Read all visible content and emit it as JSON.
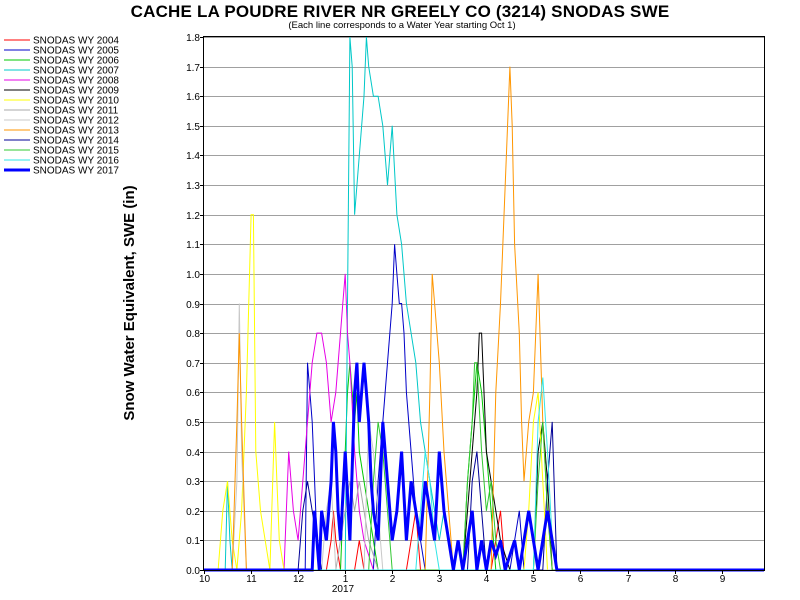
{
  "chart_data": {
    "type": "line",
    "title": "CACHE LA POUDRE RIVER NR GREELY CO (3214) SNODAS SWE",
    "subtitle": "(Each line corresponds to a Water Year starting Oct 1)",
    "ylabel": "Snow Water Equivalent, SWE (in)",
    "xlabel": "",
    "x_tick_labels": [
      "10",
      "11",
      "12",
      "1",
      "2",
      "3",
      "4",
      "5",
      "6",
      "7",
      "8",
      "9"
    ],
    "x_tick_months": [
      10,
      11,
      12,
      13,
      14,
      15,
      16,
      17,
      18,
      19,
      20,
      21
    ],
    "x_year_label": "2017",
    "xlim": [
      10,
      21.9
    ],
    "ylim": [
      0,
      1.8
    ],
    "y_ticks": [
      0.0,
      0.1,
      0.2,
      0.3,
      0.4,
      0.5,
      0.6,
      0.7,
      0.8,
      0.9,
      1.0,
      1.1,
      1.2,
      1.3,
      1.4,
      1.5,
      1.6,
      1.7,
      1.8
    ],
    "y_tick_labels": [
      "0.0",
      "0.1",
      "0.2",
      "0.3",
      "0.4",
      "0.5",
      "0.6",
      "0.7",
      "0.8",
      "0.9",
      "1.0",
      "1.1",
      "1.2",
      "1.3",
      "1.4",
      "1.5",
      "1.6",
      "1.7",
      "1.8"
    ],
    "grid": "horizontal",
    "legend_position": "left",
    "series": [
      {
        "name": "SNODAS WY 2004",
        "color": "#ff0000",
        "bold": false,
        "x": [
          10.0,
          12.6,
          12.7,
          12.75,
          12.8,
          12.9,
          13.2,
          13.3,
          13.4,
          14.3,
          14.4,
          14.5,
          14.6,
          16.1,
          16.2,
          16.3,
          16.4,
          21.9
        ],
        "y": [
          0,
          0,
          0.1,
          0.2,
          0.1,
          0,
          0,
          0.1,
          0,
          0,
          0.1,
          0.2,
          0,
          0,
          0.1,
          0.2,
          0,
          0
        ]
      },
      {
        "name": "SNODAS WY 2005",
        "color": "#0000c8",
        "bold": false,
        "x": [
          10.0,
          12.15,
          12.2,
          12.25,
          12.3,
          12.35,
          12.4,
          12.45,
          13.6,
          13.7,
          13.8,
          13.9,
          14.0,
          14.05,
          14.1,
          14.15,
          14.2,
          14.25,
          14.3,
          14.4,
          14.5,
          14.6,
          14.7,
          16.5,
          16.6,
          16.7,
          16.8,
          21.9
        ],
        "y": [
          0,
          0,
          0.7,
          0.6,
          0.5,
          0.3,
          0.1,
          0,
          0,
          0.3,
          0.5,
          0.7,
          0.9,
          1.1,
          1.0,
          0.9,
          0.9,
          0.8,
          0.6,
          0.4,
          0.2,
          0.1,
          0,
          0,
          0.1,
          0.2,
          0,
          0
        ]
      },
      {
        "name": "SNODAS WY 2006",
        "color": "#00c800",
        "bold": false,
        "x": [
          10.0,
          12.9,
          13.0,
          13.05,
          13.1,
          13.15,
          13.2,
          13.25,
          13.3,
          13.4,
          13.5,
          13.6,
          13.7,
          15.5,
          15.6,
          15.7,
          15.8,
          15.9,
          16.0,
          16.1,
          16.2,
          21.9
        ],
        "y": [
          0,
          0,
          0.4,
          0.6,
          0.7,
          0.6,
          0.5,
          0.6,
          0.4,
          0.3,
          0.2,
          0.1,
          0,
          0,
          0.3,
          0.5,
          0.7,
          0.6,
          0.4,
          0.2,
          0,
          0
        ]
      },
      {
        "name": "SNODAS WY 2007",
        "color": "#00c8c8",
        "bold": false,
        "x": [
          10.0,
          10.45,
          10.5,
          10.55,
          10.6,
          13.0,
          13.05,
          13.1,
          13.15,
          13.2,
          13.3,
          13.4,
          13.45,
          13.5,
          13.6,
          13.7,
          13.8,
          13.9,
          14.0,
          14.1,
          14.2,
          14.3,
          14.4,
          14.5,
          14.6,
          14.7,
          14.8,
          14.9,
          15.0,
          15.1,
          15.2,
          15.3,
          21.9
        ],
        "y": [
          0,
          0,
          0.3,
          0.1,
          0,
          0,
          0.9,
          1.8,
          1.7,
          1.2,
          1.4,
          1.6,
          1.8,
          1.7,
          1.6,
          1.6,
          1.5,
          1.3,
          1.5,
          1.2,
          1.1,
          0.9,
          0.8,
          0.7,
          0.5,
          0.4,
          0.3,
          0.2,
          0.1,
          0.2,
          0.1,
          0,
          0
        ]
      },
      {
        "name": "SNODAS WY 2008",
        "color": "#e600e6",
        "bold": false,
        "x": [
          10.0,
          11.7,
          11.8,
          11.9,
          12.0,
          12.1,
          12.2,
          12.3,
          12.4,
          12.5,
          12.6,
          12.7,
          12.8,
          12.9,
          12.95,
          13.0,
          13.05,
          13.1,
          13.2,
          13.3,
          13.4,
          13.5,
          13.6,
          21.9
        ],
        "y": [
          0,
          0,
          0.4,
          0.2,
          0.1,
          0.3,
          0.5,
          0.7,
          0.8,
          0.8,
          0.7,
          0.5,
          0.6,
          0.8,
          0.9,
          1.0,
          0.8,
          0.7,
          0.4,
          0.2,
          0.1,
          0.05,
          0,
          0
        ]
      },
      {
        "name": "SNODAS WY 2009",
        "color": "#000000",
        "bold": false,
        "x": [
          10.0,
          15.5,
          15.6,
          15.7,
          15.8,
          15.85,
          15.9,
          15.95,
          16.0,
          16.1,
          16.2,
          16.3,
          16.4,
          16.5,
          17.0,
          17.1,
          17.2,
          17.3,
          17.4,
          21.9
        ],
        "y": [
          0,
          0,
          0.2,
          0.4,
          0.6,
          0.8,
          0.8,
          0.6,
          0.4,
          0.3,
          0.2,
          0.1,
          0.05,
          0,
          0,
          0.4,
          0.5,
          0.3,
          0,
          0
        ]
      },
      {
        "name": "SNODAS WY 2010",
        "color": "#ffff00",
        "bold": false,
        "x": [
          10.0,
          10.3,
          10.4,
          10.5,
          10.6,
          10.7,
          10.8,
          10.9,
          11.0,
          11.05,
          11.1,
          11.2,
          11.3,
          11.4,
          11.5,
          11.55,
          11.6,
          11.7,
          11.8,
          16.8,
          16.9,
          17.0,
          17.1,
          17.2,
          17.3,
          21.9
        ],
        "y": [
          0,
          0,
          0.2,
          0.3,
          0.1,
          0,
          0.2,
          0.6,
          1.2,
          1.2,
          0.4,
          0.2,
          0.1,
          0,
          0.5,
          0.3,
          0.1,
          0,
          0,
          0,
          0.2,
          0.5,
          0.6,
          0.3,
          0,
          0
        ]
      },
      {
        "name": "SNODAS WY 2011",
        "color": "#aaaaaa",
        "bold": false,
        "x": [
          10.0,
          12.8,
          12.9,
          13.0,
          13.1,
          13.2,
          13.3,
          13.4,
          13.5,
          13.6,
          13.7,
          21.9
        ],
        "y": [
          0,
          0,
          0.1,
          0.2,
          0.3,
          0.2,
          0.3,
          0.2,
          0.1,
          0.05,
          0,
          0
        ]
      },
      {
        "name": "SNODAS WY 2012",
        "color": "#c8c8c8",
        "bold": false,
        "x": [
          10.0,
          10.6,
          10.7,
          10.75,
          10.8,
          10.9,
          12.5,
          12.6,
          12.7,
          12.8,
          13.4,
          13.5,
          13.6,
          13.7,
          13.8,
          21.9
        ],
        "y": [
          0,
          0,
          0.3,
          0.9,
          0.4,
          0,
          0,
          0.2,
          0.3,
          0,
          0,
          0.5,
          0.4,
          0.2,
          0,
          0
        ]
      },
      {
        "name": "SNODAS WY 2013",
        "color": "#ff9600",
        "bold": false,
        "x": [
          10.0,
          10.6,
          10.7,
          10.75,
          10.8,
          10.9,
          14.7,
          14.8,
          14.85,
          14.9,
          15.0,
          15.1,
          15.2,
          15.3,
          16.1,
          16.2,
          16.3,
          16.4,
          16.5,
          16.55,
          16.6,
          16.7,
          16.75,
          16.8,
          16.9,
          17.0,
          17.1,
          17.2,
          17.3,
          17.4,
          21.9
        ],
        "y": [
          0,
          0,
          0.5,
          0.8,
          0.5,
          0,
          0,
          0.6,
          1.0,
          0.9,
          0.7,
          0.4,
          0.2,
          0,
          0,
          0.6,
          0.9,
          1.3,
          1.7,
          1.5,
          1.1,
          0.8,
          0.5,
          0.3,
          0.5,
          0.6,
          1.0,
          0.5,
          0.2,
          0,
          0
        ]
      },
      {
        "name": "SNODAS WY 2014",
        "color": "#000096",
        "bold": false,
        "x": [
          10.0,
          12.0,
          12.1,
          12.2,
          12.3,
          12.4,
          12.5,
          15.6,
          15.7,
          15.8,
          15.9,
          16.0,
          17.2,
          17.3,
          17.4,
          17.5,
          21.9
        ],
        "y": [
          0,
          0,
          0.2,
          0.3,
          0.2,
          0.1,
          0,
          0,
          0.3,
          0.4,
          0.2,
          0,
          0,
          0.3,
          0.5,
          0,
          0
        ]
      },
      {
        "name": "SNODAS WY 2015",
        "color": "#32c832",
        "bold": false,
        "x": [
          10.0,
          13.5,
          13.6,
          13.7,
          13.8,
          13.9,
          14.0,
          15.5,
          15.6,
          15.7,
          15.75,
          15.8,
          15.9,
          16.0,
          16.1,
          16.2,
          16.3,
          17.0,
          17.1,
          17.2,
          17.3,
          17.4,
          21.9
        ],
        "y": [
          0,
          0,
          0.3,
          0.5,
          0.4,
          0.2,
          0,
          0,
          0.3,
          0.5,
          0.7,
          0.7,
          0.4,
          0.2,
          0.3,
          0.1,
          0,
          0,
          0.3,
          0.5,
          0.2,
          0,
          0
        ]
      },
      {
        "name": "SNODAS WY 2016",
        "color": "#32e6e6",
        "bold": false,
        "x": [
          10.0,
          14.5,
          14.6,
          14.7,
          14.8,
          14.9,
          15.0,
          17.0,
          17.1,
          17.2,
          17.3,
          17.4,
          17.5,
          21.9
        ],
        "y": [
          0,
          0,
          0.2,
          0.4,
          0.3,
          0.1,
          0,
          0,
          0.5,
          0.65,
          0.4,
          0.1,
          0,
          0
        ]
      },
      {
        "name": "SNODAS WY 2017",
        "color": "#0000ff",
        "bold": true,
        "x": [
          10.0,
          12.3,
          12.35,
          12.4,
          12.45,
          12.5,
          12.6,
          12.7,
          12.75,
          12.8,
          12.85,
          12.9,
          13.0,
          13.1,
          13.2,
          13.25,
          13.3,
          13.35,
          13.4,
          13.45,
          13.5,
          13.55,
          13.6,
          13.7,
          13.8,
          13.9,
          14.0,
          14.1,
          14.2,
          14.3,
          14.4,
          14.5,
          14.6,
          14.7,
          14.8,
          14.9,
          15.0,
          15.1,
          15.2,
          15.3,
          15.4,
          15.5,
          15.6,
          15.7,
          15.8,
          15.9,
          16.0,
          16.1,
          16.2,
          16.3,
          16.4,
          16.5,
          16.6,
          16.7,
          16.8,
          16.9,
          17.0,
          17.1,
          17.2,
          17.3,
          17.4,
          17.5,
          21.9
        ],
        "y": [
          0,
          0,
          0.2,
          0.1,
          0,
          0.2,
          0.1,
          0.3,
          0.5,
          0.4,
          0.2,
          0.1,
          0.4,
          0.1,
          0.6,
          0.7,
          0.5,
          0.6,
          0.7,
          0.6,
          0.5,
          0.3,
          0.2,
          0.1,
          0.5,
          0.3,
          0.1,
          0.2,
          0.4,
          0.1,
          0.3,
          0.2,
          0.1,
          0.3,
          0.2,
          0.1,
          0.4,
          0.2,
          0.1,
          0,
          0.1,
          0,
          0.1,
          0.2,
          0,
          0.1,
          0,
          0.1,
          0.05,
          0.1,
          0,
          0.05,
          0.1,
          0,
          0.1,
          0.2,
          0.1,
          0,
          0.1,
          0.2,
          0.1,
          0,
          0
        ]
      }
    ]
  }
}
